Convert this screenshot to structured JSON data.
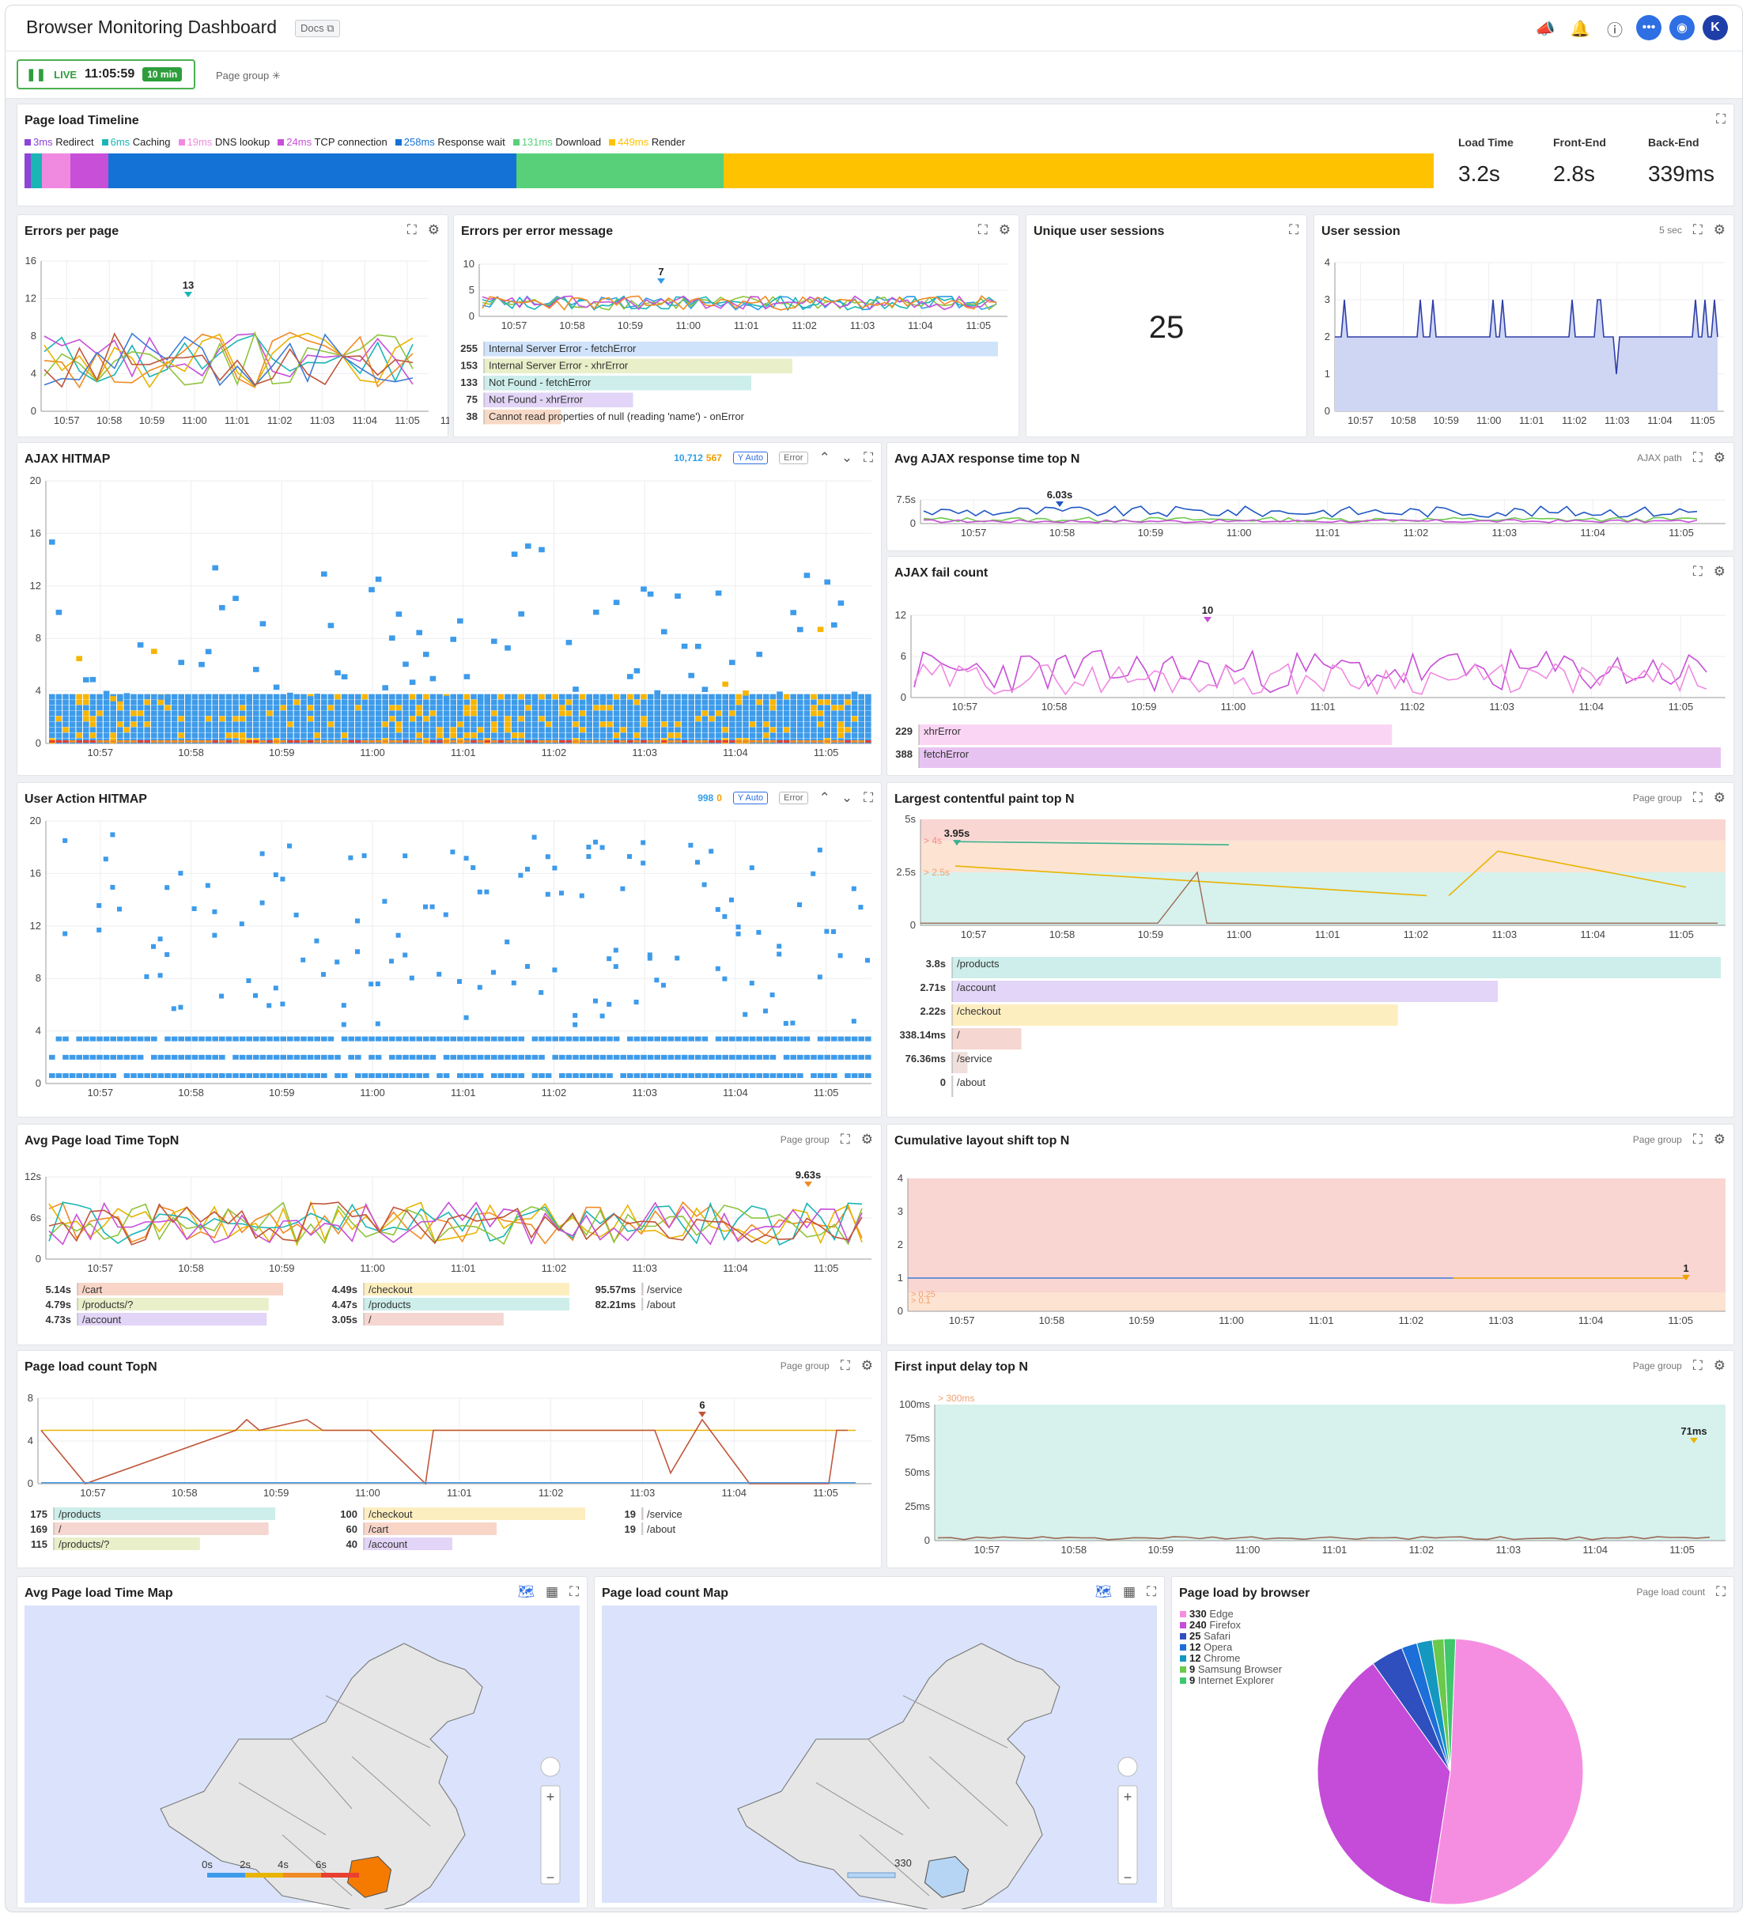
{
  "header": {
    "title": "Browser Monitoring Dashboard",
    "docs_label": "Docs"
  },
  "subbar": {
    "live_label": "LIVE",
    "time": "11:05:59",
    "range": "10 min",
    "page_group_label": "Page group"
  },
  "time_ticks": [
    "10:57",
    "10:58",
    "10:59",
    "11:00",
    "11:01",
    "11:02",
    "11:03",
    "11:04",
    "11:05",
    "11:0"
  ],
  "timeline": {
    "title": "Page load Timeline",
    "legend": [
      {
        "value": "3ms",
        "label": "Redirect",
        "color": "#8e44d6"
      },
      {
        "value": "6ms",
        "label": "Caching",
        "color": "#1ab5b5"
      },
      {
        "value": "19ms",
        "label": "DNS lookup",
        "color": "#f08ae0"
      },
      {
        "value": "24ms",
        "label": "TCP connection",
        "color": "#c84fd8"
      },
      {
        "value": "258ms",
        "label": "Response wait",
        "color": "#1472d6"
      },
      {
        "value": "131ms",
        "label": "Download",
        "color": "#58d07a"
      },
      {
        "value": "449ms",
        "label": "Render",
        "color": "#ffc200"
      }
    ],
    "metrics": [
      {
        "label": "Load Time",
        "value": "3.2s"
      },
      {
        "label": "Front-End",
        "value": "2.8s"
      },
      {
        "label": "Back-End",
        "value": "339ms"
      }
    ]
  },
  "errors_per_page": {
    "title": "Errors per page",
    "y_ticks": [
      "16",
      "12",
      "8",
      "4",
      "0"
    ],
    "peak_label": "13"
  },
  "errors_per_message": {
    "title": "Errors per error message",
    "y_ticks": [
      "10",
      "5",
      "0"
    ],
    "peak_label": "7",
    "rows": [
      {
        "count": "255",
        "label": "Internal Server Error - fetchError",
        "color": "#cfe3fb",
        "frac": 1.0
      },
      {
        "count": "153",
        "label": "Internal Server Error - xhrError",
        "color": "#e9efc9",
        "frac": 0.6
      },
      {
        "count": "133",
        "label": "Not Found - fetchError",
        "color": "#cdeeea",
        "frac": 0.52
      },
      {
        "count": "75",
        "label": "Not Found - xhrError",
        "color": "#e2d5f7",
        "frac": 0.29
      },
      {
        "count": "38",
        "label": "Cannot read properties of null (reading 'name') - onError",
        "color": "#f8d9c6",
        "frac": 0.15
      }
    ]
  },
  "unique_sessions": {
    "title": "Unique user sessions",
    "value": "25"
  },
  "user_session": {
    "title": "User session",
    "interval": "5 sec",
    "y_ticks": [
      "4",
      "3",
      "2",
      "1",
      "0"
    ]
  },
  "ajax_hitmap": {
    "title": "AJAX HITMAP",
    "count_ok": "10,712",
    "count_err": "567",
    "y_auto": "Y Auto",
    "error_label": "Error",
    "y_ticks": [
      "20",
      "16",
      "12",
      "8",
      "4",
      "0"
    ]
  },
  "avg_ajax": {
    "title": "Avg AJAX response time top N",
    "filter": "AJAX path",
    "y_ticks": [
      "7.5s",
      "0"
    ],
    "peak_label": "6.03s"
  },
  "ajax_fail": {
    "title": "AJAX fail count",
    "y_ticks": [
      "12",
      "6",
      "0"
    ],
    "peak_label": "10",
    "rows": [
      {
        "count": "229",
        "label": "xhrError",
        "color": "#fbd6f4",
        "frac": 0.59
      },
      {
        "count": "388",
        "label": "fetchError",
        "color": "#e7c3f2",
        "frac": 1.0
      }
    ]
  },
  "user_hitmap": {
    "title": "User Action HITMAP",
    "count_ok": "998",
    "count_err": "0",
    "y_auto": "Y Auto",
    "error_label": "Error",
    "y_ticks": [
      "20",
      "16",
      "12",
      "8",
      "4",
      "0"
    ]
  },
  "lcp": {
    "title": "Largest contentful paint top N",
    "filter": "Page group",
    "y_ticks": [
      "5s",
      "2.5s",
      "0"
    ],
    "band_labels": [
      "> 4s",
      "> 2.5s"
    ],
    "peak_label": "3.95s",
    "rows": [
      {
        "value": "3.8s",
        "label": "/products",
        "color": "#cdeeea",
        "frac": 1.0
      },
      {
        "value": "2.71s",
        "label": "/account",
        "color": "#e2d5f7",
        "frac": 0.71
      },
      {
        "value": "2.22s",
        "label": "/checkout",
        "color": "#fdeec0",
        "frac": 0.58
      },
      {
        "value": "338.14ms",
        "label": "/",
        "color": "#f5d6d0",
        "frac": 0.09
      },
      {
        "value": "76.36ms",
        "label": "/service",
        "color": "#f0e0dc",
        "frac": 0.02
      },
      {
        "value": "0",
        "label": "/about",
        "color": "#eeeeee",
        "frac": 0.0
      }
    ]
  },
  "avg_page_load": {
    "title": "Avg Page load Time TopN",
    "filter": "Page group",
    "y_ticks": [
      "12s",
      "6s",
      "0"
    ],
    "peak_label": "9.63s",
    "cols": [
      [
        {
          "value": "5.14s",
          "label": "/cart",
          "color": "#f9d5c8",
          "frac": 1.0
        },
        {
          "value": "4.79s",
          "label": "/products/?",
          "color": "#e9efc9",
          "frac": 0.93
        },
        {
          "value": "4.73s",
          "label": "/account",
          "color": "#e2d5f7",
          "frac": 0.92
        }
      ],
      [
        {
          "value": "4.49s",
          "label": "/checkout",
          "color": "#fdeec0",
          "frac": 1.0
        },
        {
          "value": "4.47s",
          "label": "/products",
          "color": "#cdeeea",
          "frac": 1.0
        },
        {
          "value": "3.05s",
          "label": "/",
          "color": "#f5d6d0",
          "frac": 0.68
        }
      ],
      [
        {
          "value": "95.57ms",
          "label": "/service",
          "color": "#f0e0dc",
          "frac": 0.0
        },
        {
          "value": "82.21ms",
          "label": "/about",
          "color": "#eeeeee",
          "frac": 0.0
        }
      ]
    ]
  },
  "cls": {
    "title": "Cumulative layout shift top N",
    "filter": "Page group",
    "y_ticks": [
      "4",
      "3",
      "2",
      "1",
      "0"
    ],
    "peak_label": "1",
    "band_labels": [
      "> 0.25",
      "> 0.1"
    ]
  },
  "page_load_count": {
    "title": "Page load count TopN",
    "filter": "Page group",
    "y_ticks": [
      "8",
      "4",
      "0"
    ],
    "peak_label": "6",
    "cols": [
      [
        {
          "value": "175",
          "label": "/products",
          "color": "#cdeeea",
          "frac": 1.0
        },
        {
          "value": "169",
          "label": "/",
          "color": "#f5d6d0",
          "frac": 0.97
        },
        {
          "value": "115",
          "label": "/products/?",
          "color": "#e9efc9",
          "frac": 0.66
        }
      ],
      [
        {
          "value": "100",
          "label": "/checkout",
          "color": "#fdeec0",
          "frac": 1.0
        },
        {
          "value": "60",
          "label": "/cart",
          "color": "#f9d5c8",
          "frac": 0.6
        },
        {
          "value": "40",
          "label": "/account",
          "color": "#e2d5f7",
          "frac": 0.4
        }
      ],
      [
        {
          "value": "19",
          "label": "/service",
          "color": "#f0e0dc",
          "frac": 0.0
        },
        {
          "value": "19",
          "label": "/about",
          "color": "#eeeeee",
          "frac": 0.0
        }
      ]
    ]
  },
  "fid": {
    "title": "First input delay top N",
    "filter": "Page group",
    "y_ticks": [
      "100ms",
      "75ms",
      "50ms",
      "25ms",
      "0"
    ],
    "band_label": "> 300ms",
    "peak_label": "71ms"
  },
  "map_time": {
    "title": "Avg Page load Time Map",
    "legend": [
      "0s",
      "2s",
      "4s",
      "6s"
    ]
  },
  "map_count": {
    "title": "Page load count Map",
    "legend_value": "330"
  },
  "browser": {
    "title": "Page load by browser",
    "filter": "Page load count",
    "items": [
      {
        "count": "330",
        "name": "Edge",
        "color": "#f58ee0",
        "value": 330
      },
      {
        "count": "240",
        "name": "Firefox",
        "color": "#c44cd8",
        "value": 240
      },
      {
        "count": "25",
        "name": "Safari",
        "color": "#2f4fbf",
        "value": 25
      },
      {
        "count": "12",
        "name": "Opera",
        "color": "#1c6fd8",
        "value": 12
      },
      {
        "count": "12",
        "name": "Chrome",
        "color": "#1498c0",
        "value": 12
      },
      {
        "count": "9",
        "name": "Samsung Browser",
        "color": "#6bc94c",
        "value": 9
      },
      {
        "count": "9",
        "name": "Internet Explorer",
        "color": "#3ec76d",
        "value": 9
      }
    ]
  }
}
